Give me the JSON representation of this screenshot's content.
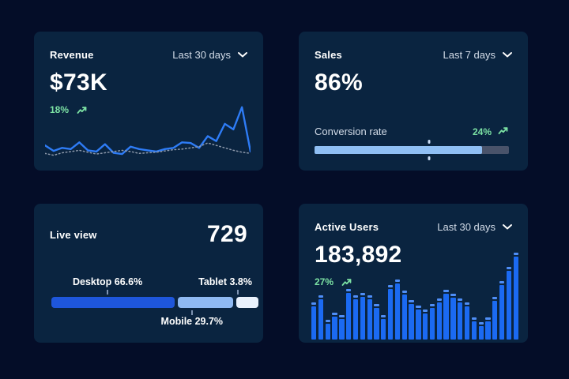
{
  "page": {
    "background": "#040D28",
    "card_background": "#0A2440"
  },
  "colors": {
    "accent_blue": "#2E7CF6",
    "deep_blue": "#1E56DB",
    "bar_blue": "#1B6AF2",
    "bar_cap_blue": "#4F8EF7",
    "light_blue": "#8FBFF4",
    "pale_blue": "#E9F1FC",
    "track_gray": "#49536A",
    "dotted_gray": "#8D99AB",
    "green": "#7CE2A4",
    "muted_text": "#D3DCE8",
    "white_text": "#FFFFFF"
  },
  "icons": {
    "chevron_down_icon": "⌄",
    "trending_up_icon": "↗"
  },
  "cards": {
    "revenue": {
      "title": "Revenue",
      "range": "Last 30 days",
      "value": "$73K",
      "delta": "18%"
    },
    "sales": {
      "title": "Sales",
      "range": "Last 7 days",
      "value": "86%",
      "metric_label": "Conversion rate",
      "delta": "24%"
    },
    "live_view": {
      "title": "Live view",
      "value": "729"
    },
    "active_users": {
      "title": "Active Users",
      "range": "Last 30 days",
      "value": "183,892",
      "delta": "27%"
    }
  },
  "chart_data": [
    {
      "id": "revenue-trend",
      "type": "line",
      "title": "Revenue",
      "xlabel": "",
      "ylabel": "",
      "x_range": [
        0,
        24
      ],
      "ylim": [
        0,
        100
      ],
      "grid": false,
      "axes": "hidden",
      "series": [
        {
          "name": "solid",
          "style": "solid",
          "color": "#2E7CF6",
          "values": [
            28,
            19,
            24,
            22,
            33,
            20,
            18,
            30,
            16,
            14,
            26,
            22,
            20,
            18,
            22,
            24,
            33,
            32,
            24,
            43,
            35,
            63,
            54,
            90,
            18
          ]
        },
        {
          "name": "dotted",
          "style": "dotted",
          "color": "#8D99AB",
          "values": [
            15,
            12,
            16,
            18,
            20,
            17,
            14,
            16,
            18,
            20,
            18,
            15,
            16,
            17,
            19,
            21,
            22,
            24,
            26,
            32,
            28,
            24,
            20,
            17,
            15
          ]
        }
      ]
    },
    {
      "id": "conversion-progress",
      "type": "progress",
      "label": "Conversion rate",
      "percent_filled": 86,
      "marker_percent": 59,
      "fill_color": "#8FBFF4",
      "track_color": "#49536A"
    },
    {
      "id": "device-share",
      "type": "stacked-bar",
      "segments": [
        {
          "label": "Desktop",
          "value": 66.6,
          "display": "Desktop 66.6%",
          "color": "#1E56DB",
          "label_position": "above"
        },
        {
          "label": "Mobile",
          "value": 29.7,
          "display": "Mobile 29.7%",
          "color": "#8FB9F2",
          "label_position": "below"
        },
        {
          "label": "Tablet",
          "value": 3.8,
          "display": "Tablet 3.8%",
          "color": "#E9F1FC",
          "label_position": "above"
        }
      ]
    },
    {
      "id": "active-users-daily",
      "type": "bar",
      "ylim": [
        0,
        100
      ],
      "bar_color": "#1B6AF2",
      "cap_color": "#4F8EF7",
      "values": [
        42,
        50,
        22,
        30,
        28,
        57,
        50,
        53,
        50,
        40,
        28,
        62,
        68,
        55,
        45,
        38,
        34,
        40,
        46,
        56,
        52,
        46,
        42,
        25,
        20,
        25,
        48,
        66,
        82,
        98
      ]
    }
  ]
}
